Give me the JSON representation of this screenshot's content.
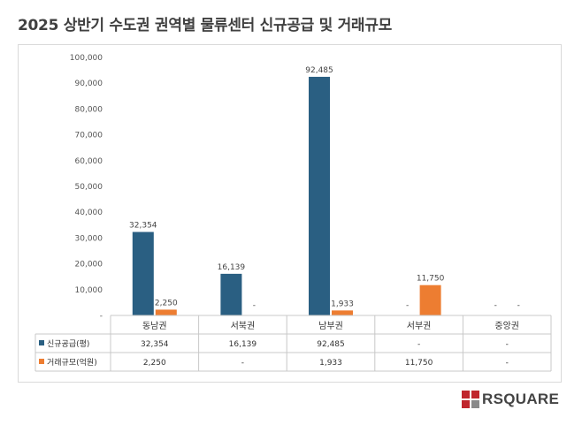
{
  "title": "2025 상반기 수도권 권역별 물류센터 신규공급 및 거래규모",
  "logo": {
    "text": "RSQUARE",
    "accent": "#c0262d",
    "text_color": "#444444"
  },
  "chart_data": {
    "type": "bar",
    "categories": [
      "동남권",
      "서북권",
      "남부권",
      "서부권",
      "중앙권"
    ],
    "ylim": [
      0,
      100000
    ],
    "yticks": [
      "-",
      "10,000",
      "20,000",
      "30,000",
      "40,000",
      "50,000",
      "60,000",
      "70,000",
      "80,000",
      "90,000",
      "100,000"
    ],
    "series": [
      {
        "name": "신규공급(평)",
        "color": "#2a5f82",
        "values": [
          32354,
          16139,
          92485,
          null,
          null
        ],
        "labels": [
          "32,354",
          "16,139",
          "92,485",
          "-",
          "-"
        ]
      },
      {
        "name": "거래규모(억원)",
        "color": "#ed7d31",
        "values": [
          2250,
          null,
          1933,
          11750,
          null
        ],
        "labels": [
          "2,250",
          "-",
          "1,933",
          "11,750",
          "-"
        ]
      }
    ],
    "grid": false,
    "legend": "data-table"
  }
}
